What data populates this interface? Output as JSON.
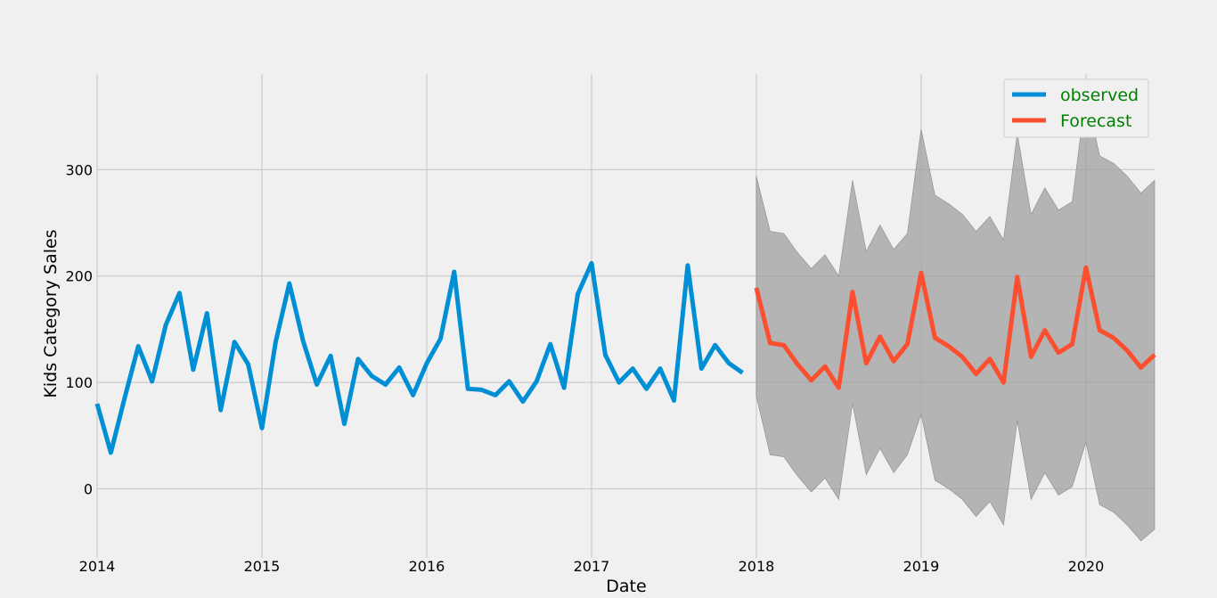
{
  "chart_data": {
    "type": "line",
    "title": "",
    "xlabel": "Date",
    "ylabel": "Kids Category Sales",
    "xlim": [
      "2014-01",
      "2020-06"
    ],
    "ylim": [
      -65,
      390
    ],
    "grid": true,
    "legend_position": "top-right",
    "x_ticks": [
      "2014",
      "2015",
      "2016",
      "2017",
      "2018",
      "2019",
      "2020"
    ],
    "y_ticks": [
      0,
      100,
      200,
      300
    ],
    "colors": {
      "background": "#f0f0f0",
      "grid": "#cbcbcb",
      "observed": "#008fd5",
      "forecast": "#fc4f30",
      "confidence_band": "#a0a0a0",
      "legend_text": "#008000"
    },
    "series": [
      {
        "name": "observed",
        "x": [
          "2014-01",
          "2014-02",
          "2014-03",
          "2014-04",
          "2014-05",
          "2014-06",
          "2014-07",
          "2014-08",
          "2014-09",
          "2014-10",
          "2014-11",
          "2014-12",
          "2015-01",
          "2015-02",
          "2015-03",
          "2015-04",
          "2015-05",
          "2015-06",
          "2015-07",
          "2015-08",
          "2015-09",
          "2015-10",
          "2015-11",
          "2015-12",
          "2016-01",
          "2016-02",
          "2016-03",
          "2016-04",
          "2016-05",
          "2016-06",
          "2016-07",
          "2016-08",
          "2016-09",
          "2016-10",
          "2016-11",
          "2016-12",
          "2017-01",
          "2017-02",
          "2017-03",
          "2017-04",
          "2017-05",
          "2017-06",
          "2017-07",
          "2017-08",
          "2017-09",
          "2017-10",
          "2017-11",
          "2017-12"
        ],
        "values": [
          80,
          34,
          85,
          134,
          101,
          154,
          184,
          112,
          165,
          74,
          138,
          117,
          57,
          138,
          193,
          139,
          98,
          125,
          61,
          122,
          106,
          98,
          114,
          88,
          118,
          141,
          204,
          94,
          93,
          88,
          101,
          82,
          101,
          136,
          95,
          183,
          212,
          126,
          100,
          113,
          94,
          113,
          83,
          210,
          113,
          135,
          118,
          109
        ]
      },
      {
        "name": "Forecast",
        "x": [
          "2018-01",
          "2018-02",
          "2018-03",
          "2018-04",
          "2018-05",
          "2018-06",
          "2018-07",
          "2018-08",
          "2018-09",
          "2018-10",
          "2018-11",
          "2018-12",
          "2019-01",
          "2019-02",
          "2019-03",
          "2019-04",
          "2019-05",
          "2019-06",
          "2019-07",
          "2019-08",
          "2019-09",
          "2019-10",
          "2019-11",
          "2019-12",
          "2020-01",
          "2020-02",
          "2020-03",
          "2020-04",
          "2020-05",
          "2020-06"
        ],
        "values": [
          189,
          137,
          135,
          117,
          102,
          115,
          95,
          185,
          118,
          143,
          120,
          136,
          203,
          142,
          134,
          124,
          108,
          122,
          100,
          199,
          124,
          149,
          128,
          136,
          208,
          149,
          142,
          130,
          114,
          126
        ],
        "lower": [
          87,
          32,
          30,
          12,
          -3,
          10,
          -10,
          80,
          13,
          38,
          15,
          32,
          70,
          8,
          0,
          -10,
          -26,
          -12,
          -34,
          64,
          -10,
          15,
          -6,
          2,
          44,
          -15,
          -22,
          -34,
          -49,
          -38
        ],
        "upper": [
          294,
          242,
          240,
          222,
          207,
          220,
          200,
          290,
          223,
          248,
          225,
          240,
          338,
          276,
          268,
          258,
          242,
          256,
          234,
          334,
          258,
          283,
          262,
          270,
          372,
          313,
          306,
          294,
          278,
          290
        ]
      }
    ]
  }
}
